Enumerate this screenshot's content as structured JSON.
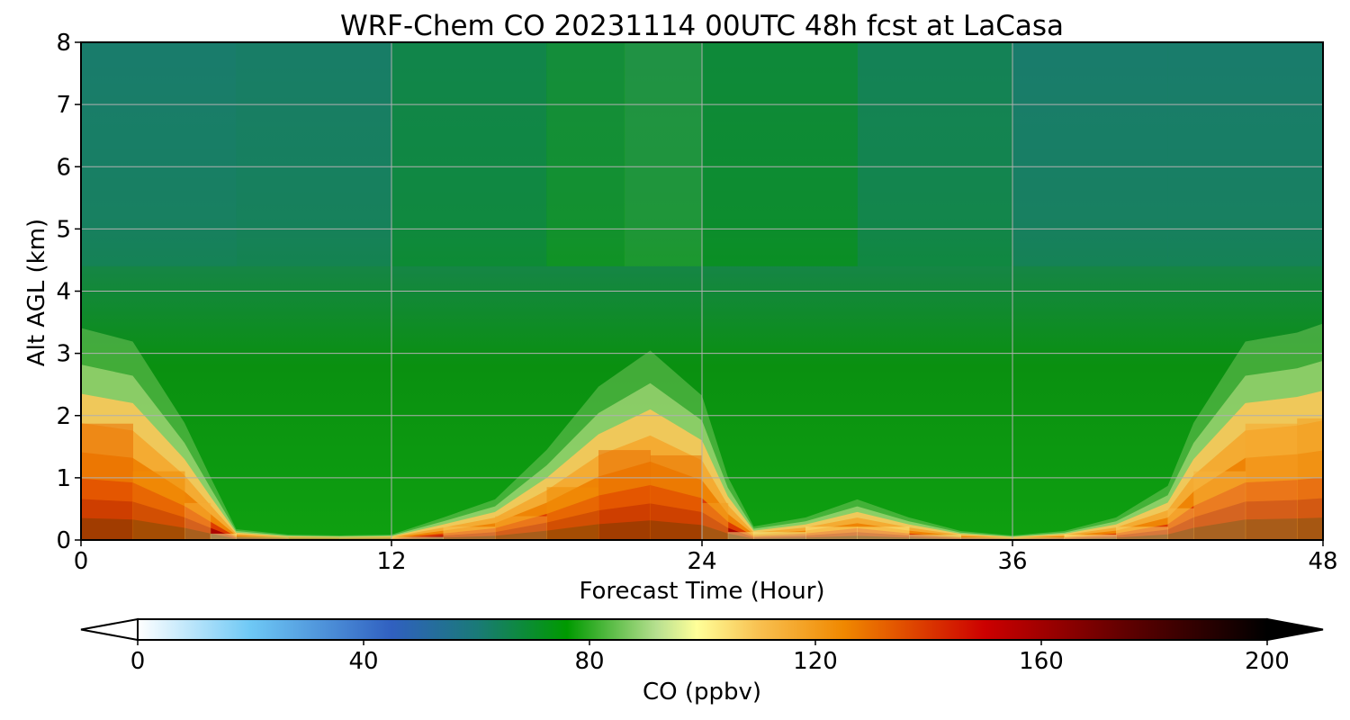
{
  "chart_data": {
    "type": "heatmap",
    "title": "WRF-Chem CO  20231114 00UTC 48h fcst at LaCasa",
    "xlabel": "Forecast Time (Hour)",
    "ylabel": "Alt AGL (km)",
    "x_ticks": [
      "0",
      "12",
      "24",
      "36",
      "48"
    ],
    "y_ticks": [
      "0",
      "1",
      "2",
      "3",
      "4",
      "5",
      "6",
      "7",
      "8"
    ],
    "xlim": [
      0,
      48
    ],
    "ylim": [
      0,
      8
    ],
    "grid": true,
    "colorbar": {
      "label": "CO  (ppbv)",
      "ticks": [
        "0",
        "40",
        "80",
        "120",
        "160",
        "200"
      ],
      "range": [
        0,
        200
      ],
      "extend": "both",
      "colors": [
        {
          "v": 0,
          "c": "#ffffff"
        },
        {
          "v": 20,
          "c": "#6ec8f5"
        },
        {
          "v": 45,
          "c": "#3060c0"
        },
        {
          "v": 60,
          "c": "#1a7a78"
        },
        {
          "v": 76,
          "c": "#009a00"
        },
        {
          "v": 92,
          "c": "#b8e090"
        },
        {
          "v": 99,
          "c": "#ffff99"
        },
        {
          "v": 110,
          "c": "#f8c050"
        },
        {
          "v": 125,
          "c": "#f08800"
        },
        {
          "v": 150,
          "c": "#cc0000"
        },
        {
          "v": 175,
          "c": "#600000"
        },
        {
          "v": 200,
          "c": "#000000"
        }
      ]
    },
    "surface_layer": [
      {
        "t": 0,
        "h": 2.35,
        "co": 132
      },
      {
        "t": 2,
        "h": 2.2,
        "co": 128
      },
      {
        "t": 4,
        "h": 1.3,
        "co": 120
      },
      {
        "t": 5,
        "h": 0.7,
        "co": 110
      },
      {
        "t": 6,
        "h": 0.12,
        "co": 92
      },
      {
        "t": 8,
        "h": 0.06,
        "co": 88
      },
      {
        "t": 10,
        "h": 0.05,
        "co": 88
      },
      {
        "t": 12,
        "h": 0.06,
        "co": 90
      },
      {
        "t": 14,
        "h": 0.25,
        "co": 105
      },
      {
        "t": 16,
        "h": 0.45,
        "co": 112
      },
      {
        "t": 18,
        "h": 1.0,
        "co": 120
      },
      {
        "t": 20,
        "h": 1.7,
        "co": 128
      },
      {
        "t": 22,
        "h": 2.1,
        "co": 132
      },
      {
        "t": 24,
        "h": 1.6,
        "co": 126
      },
      {
        "t": 25,
        "h": 0.7,
        "co": 112
      },
      {
        "t": 26,
        "h": 0.15,
        "co": 95
      },
      {
        "t": 28,
        "h": 0.25,
        "co": 100
      },
      {
        "t": 30,
        "h": 0.45,
        "co": 104
      },
      {
        "t": 32,
        "h": 0.25,
        "co": 100
      },
      {
        "t": 34,
        "h": 0.1,
        "co": 94
      },
      {
        "t": 36,
        "h": 0.05,
        "co": 92
      },
      {
        "t": 38,
        "h": 0.1,
        "co": 96
      },
      {
        "t": 40,
        "h": 0.25,
        "co": 102
      },
      {
        "t": 42,
        "h": 0.6,
        "co": 110
      },
      {
        "t": 43,
        "h": 1.3,
        "co": 112
      },
      {
        "t": 45,
        "h": 2.2,
        "co": 115
      },
      {
        "t": 47,
        "h": 2.3,
        "co": 118
      },
      {
        "t": 48,
        "h": 2.4,
        "co": 120
      }
    ],
    "free_troposphere_at_8km": [
      {
        "t": 0,
        "co": 66
      },
      {
        "t": 6,
        "co": 60
      },
      {
        "t": 12,
        "co": 68
      },
      {
        "t": 18,
        "co": 74
      },
      {
        "t": 21,
        "co": 80
      },
      {
        "t": 24,
        "co": 78
      },
      {
        "t": 30,
        "co": 72
      },
      {
        "t": 36,
        "co": 64
      },
      {
        "t": 42,
        "co": 62
      },
      {
        "t": 48,
        "co": 64
      }
    ]
  }
}
